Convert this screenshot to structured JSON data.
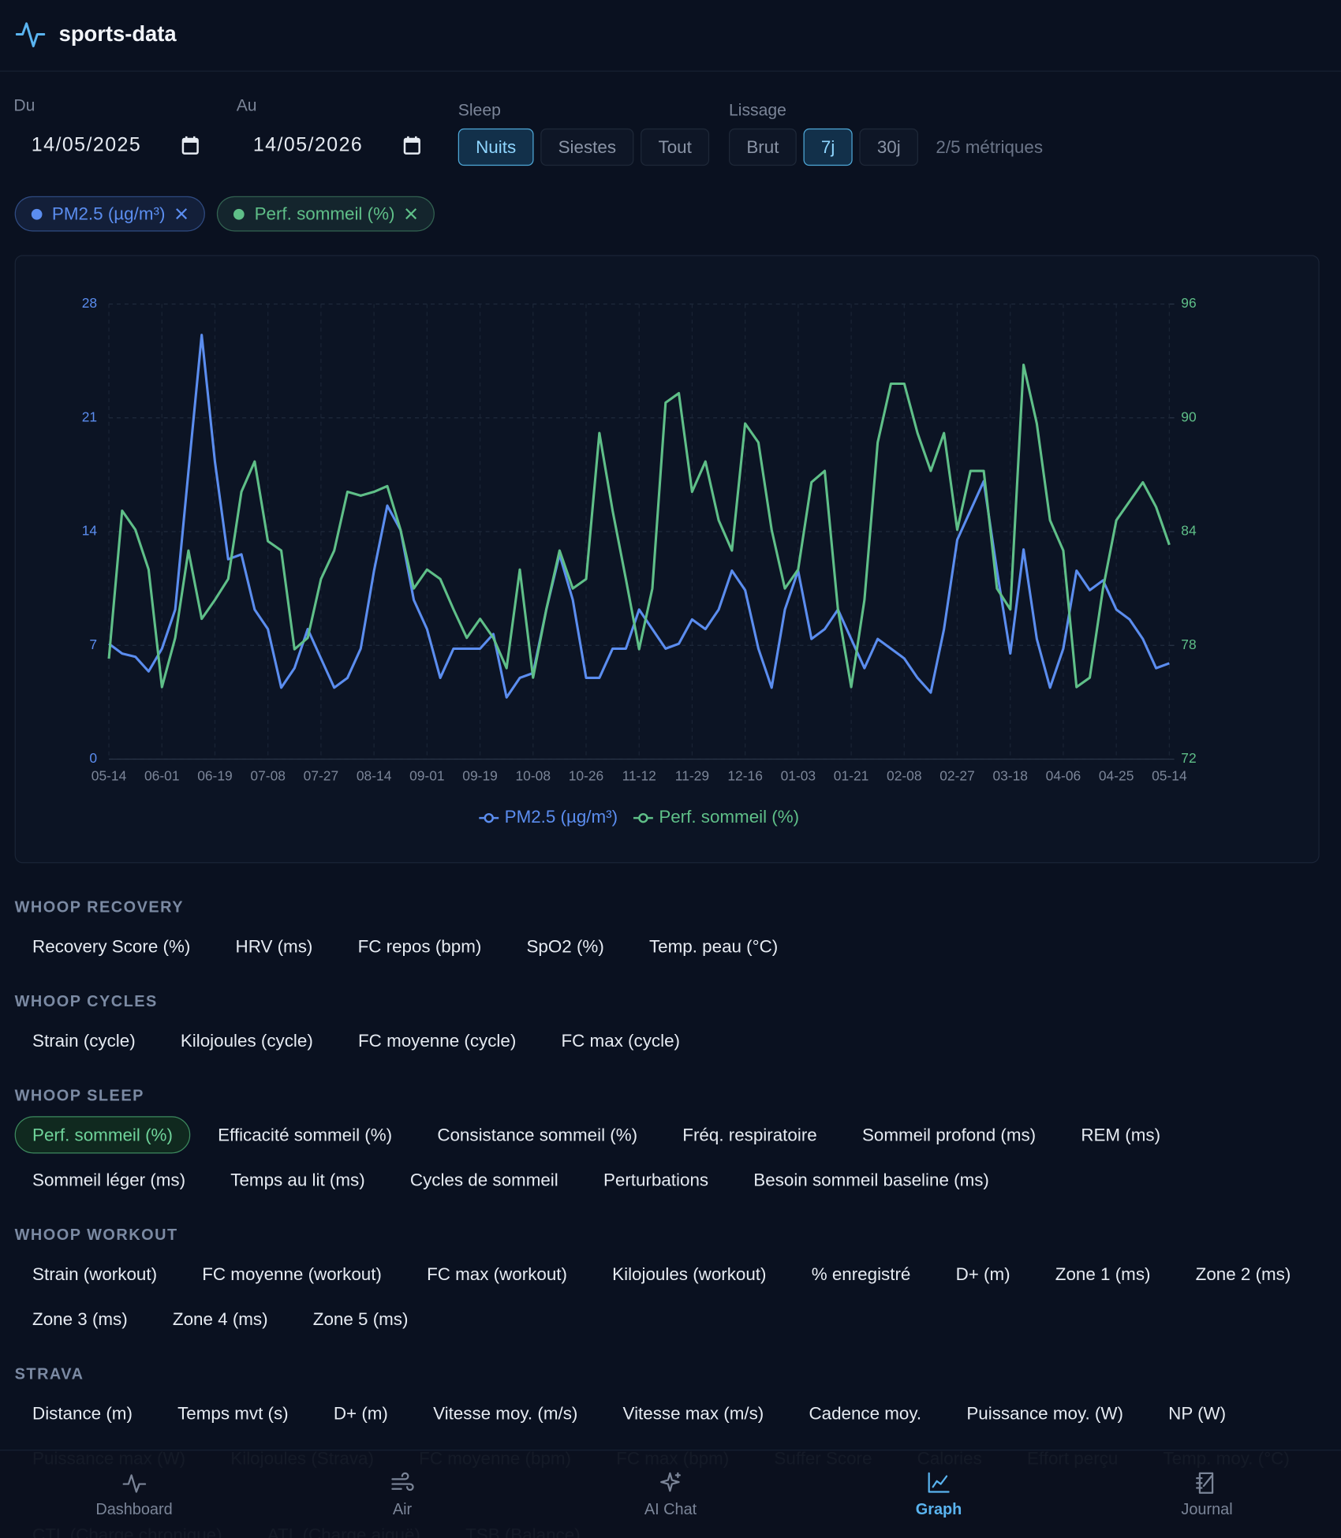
{
  "header": {
    "brand": "sports-data"
  },
  "filters": {
    "du_label": "Du",
    "du_value": "14/05/2025",
    "au_label": "Au",
    "au_value": "14/05/2026",
    "sleep_label": "Sleep",
    "sleep_options": [
      "Nuits",
      "Siestes",
      "Tout"
    ],
    "sleep_active": 0,
    "lissage_label": "Lissage",
    "lissage_options": [
      "Brut",
      "7j",
      "30j"
    ],
    "lissage_active": 1,
    "metric_count": "2/5 métriques"
  },
  "chart_data": {
    "type": "line",
    "categories": [
      "05-14",
      null,
      null,
      null,
      "06-01",
      null,
      null,
      null,
      "06-19",
      null,
      null,
      null,
      "07-08",
      null,
      null,
      null,
      "07-27",
      null,
      null,
      null,
      "08-14",
      null,
      null,
      null,
      "09-01",
      null,
      null,
      null,
      "09-19",
      null,
      null,
      null,
      "10-08",
      null,
      null,
      null,
      "10-26",
      null,
      null,
      null,
      "11-12",
      null,
      null,
      null,
      "11-29",
      null,
      null,
      null,
      "12-16",
      null,
      null,
      null,
      "01-03",
      null,
      null,
      null,
      "01-21",
      null,
      null,
      null,
      "02-08",
      null,
      null,
      null,
      "02-27",
      null,
      null,
      null,
      "03-18",
      null,
      null,
      null,
      "04-06",
      null,
      null,
      null,
      "04-25",
      null,
      null,
      null,
      "05-14"
    ],
    "series": [
      {
        "name": "PM2.5 (µg/m³)",
        "color": "#5b8def",
        "axis": "y",
        "values": [
          7.1,
          6.5,
          6.3,
          5.4,
          6.8,
          9.2,
          17.7,
          26.1,
          18.3,
          12.3,
          12.6,
          9.2,
          8.0,
          4.4,
          5.6,
          8.0,
          6.2,
          4.4,
          5.0,
          6.8,
          11.6,
          15.6,
          14.1,
          9.8,
          8.0,
          5.0,
          6.8,
          6.8,
          6.8,
          7.7,
          3.8,
          5.0,
          5.3,
          9.2,
          12.6,
          9.8,
          5.0,
          5.0,
          6.8,
          6.8,
          9.2,
          8.0,
          6.8,
          7.1,
          8.6,
          8.0,
          9.2,
          11.6,
          10.4,
          6.8,
          4.4,
          9.2,
          11.6,
          7.4,
          8.0,
          9.2,
          7.4,
          5.6,
          7.4,
          6.8,
          6.2,
          5.0,
          4.1,
          8.0,
          13.5,
          15.3,
          17.1,
          11.6,
          6.5,
          12.9,
          7.4,
          4.4,
          6.8,
          11.6,
          10.4,
          11.0,
          9.2,
          8.6,
          7.4,
          5.6,
          5.9
        ]
      },
      {
        "name": "Perf. sommeil (%)",
        "color": "#5fbf88",
        "axis": "y2",
        "values": [
          77.3,
          85.1,
          84.1,
          82.0,
          75.8,
          78.4,
          83.0,
          79.4,
          80.4,
          81.5,
          86.1,
          87.7,
          83.5,
          83.0,
          77.8,
          78.4,
          81.5,
          83.0,
          86.1,
          85.9,
          86.1,
          86.4,
          84.1,
          81.0,
          82.0,
          81.5,
          79.9,
          78.4,
          79.4,
          78.4,
          76.8,
          82.0,
          76.3,
          79.9,
          83.0,
          81.0,
          81.5,
          89.2,
          85.1,
          81.5,
          77.8,
          81.0,
          90.8,
          91.3,
          86.1,
          87.7,
          84.6,
          83.0,
          89.7,
          88.7,
          84.1,
          81.0,
          82.0,
          86.6,
          87.2,
          79.9,
          75.8,
          80.4,
          88.7,
          91.8,
          91.8,
          89.2,
          87.2,
          89.2,
          84.1,
          87.2,
          87.2,
          81.0,
          79.9,
          92.8,
          89.7,
          84.6,
          83.0,
          75.8,
          76.3,
          81.0,
          84.6,
          85.6,
          86.6,
          85.3,
          83.3
        ]
      }
    ],
    "ylim": [
      0,
      28
    ],
    "yticks": [
      0,
      7,
      14,
      21,
      28
    ],
    "y2lim": [
      72,
      96
    ],
    "y2ticks": [
      72,
      78,
      84,
      90,
      96
    ],
    "grid": true,
    "legend": "bottom"
  },
  "sections": [
    {
      "title": "WHOOP RECOVERY",
      "items": [
        "Recovery Score (%)",
        "HRV (ms)",
        "FC repos (bpm)",
        "SpO2 (%)",
        "Temp. peau (°C)"
      ]
    },
    {
      "title": "WHOOP CYCLES",
      "items": [
        "Strain (cycle)",
        "Kilojoules (cycle)",
        "FC moyenne (cycle)",
        "FC max (cycle)"
      ]
    },
    {
      "title": "WHOOP SLEEP",
      "items": [
        "Perf. sommeil (%)",
        "Efficacité sommeil (%)",
        "Consistance sommeil (%)",
        "Fréq. respiratoire",
        "Sommeil profond (ms)",
        "REM (ms)",
        "Sommeil léger (ms)",
        "Temps au lit (ms)",
        "Cycles de sommeil",
        "Perturbations",
        "Besoin sommeil baseline (ms)"
      ],
      "active": [
        0
      ]
    },
    {
      "title": "WHOOP WORKOUT",
      "items": [
        "Strain (workout)",
        "FC moyenne (workout)",
        "FC max (workout)",
        "Kilojoules (workout)",
        "% enregistré",
        "D+ (m)",
        "Zone 1 (ms)",
        "Zone 2 (ms)",
        "Zone 3 (ms)",
        "Zone 4 (ms)",
        "Zone 5 (ms)"
      ]
    },
    {
      "title": "STRAVA",
      "items": [
        "Distance (m)",
        "Temps mvt (s)",
        "D+ (m)",
        "Vitesse moy. (m/s)",
        "Vitesse max (m/s)",
        "Cadence moy.",
        "Puissance moy. (W)",
        "NP (W)",
        "Puissance max (W)",
        "Kilojoules (Strava)",
        "FC moyenne (bpm)",
        "FC max (bpm)",
        "Suffer Score",
        "Calories",
        "Effort perçu",
        "Temp. moy. (°C)"
      ]
    },
    {
      "items": [
        "CTL (Charge chronique)",
        "ATL (Charge aiguë)",
        "TSB (Balance)"
      ]
    }
  ],
  "nav": {
    "items": [
      "Dashboard",
      "Air",
      "AI Chat",
      "Graph",
      "Journal"
    ],
    "active": 3
  }
}
